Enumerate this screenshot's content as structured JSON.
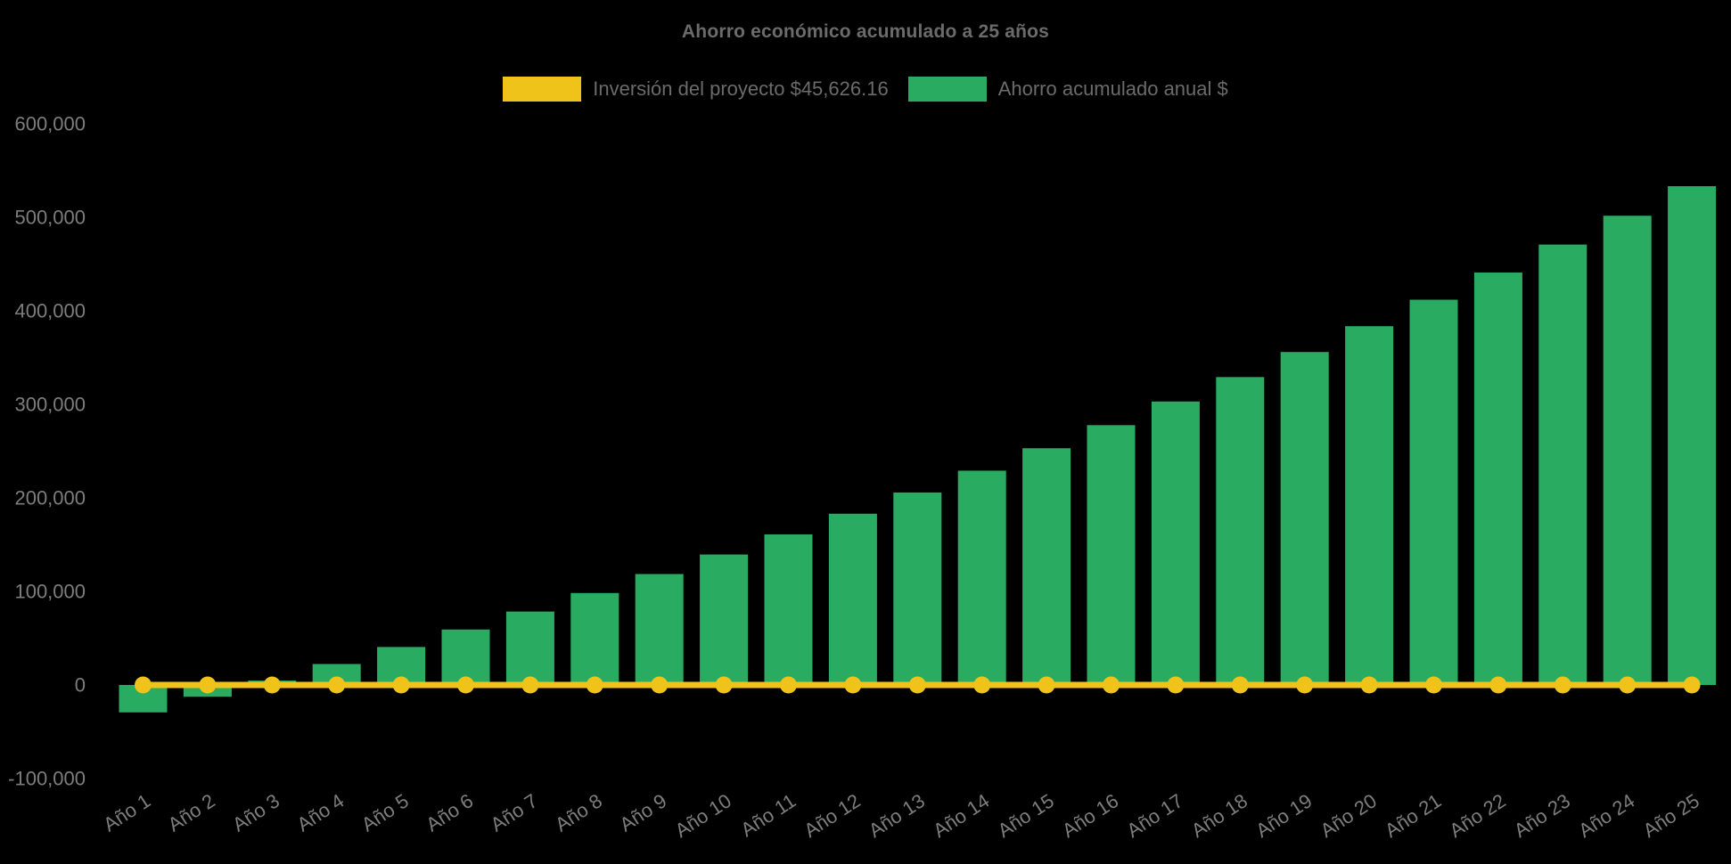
{
  "title": "Ahorro económico acumulado a 25 años",
  "legend": [
    {
      "label": "Inversión del proyecto $45,626.16",
      "color": "#efc319"
    },
    {
      "label": "Ahorro acumulado anual $",
      "color": "#29ac62"
    }
  ],
  "colors": {
    "background": "#000000",
    "bar_green": "#29ac62",
    "line_yellow": "#efc319",
    "title_text": "#6b6b6b",
    "legend_text": "#6b6b6b",
    "axis_text": "#7d7d7d"
  },
  "chart_data": {
    "type": "bar",
    "title": "Ahorro económico acumulado a 25 años",
    "xlabel": "",
    "ylabel": "",
    "ylim": [
      -100000,
      600000
    ],
    "ytick_step": 100000,
    "yticks": [
      600000,
      500000,
      400000,
      300000,
      200000,
      100000,
      0,
      -100000
    ],
    "grid": false,
    "legend_position": "top",
    "categories": [
      "Año 1",
      "Año 2",
      "Año 3",
      "Año 4",
      "Año 5",
      "Año 6",
      "Año 7",
      "Año 8",
      "Año 9",
      "Año 10",
      "Año 11",
      "Año 12",
      "Año 13",
      "Año 14",
      "Año 15",
      "Año 16",
      "Año 17",
      "Año 18",
      "Año 19",
      "Año 20",
      "Año 21",
      "Año 22",
      "Año 23",
      "Año 24",
      "Año 25"
    ],
    "series": [
      {
        "name": "Ahorro acumulado anual $",
        "type": "bar",
        "color": "#29ac62",
        "values": [
          -29300,
          -12600,
          4700,
          22400,
          40600,
          59300,
          78500,
          98300,
          118600,
          139500,
          161000,
          183100,
          205800,
          229100,
          253100,
          277800,
          303100,
          329200,
          356000,
          383600,
          411900,
          441000,
          470900,
          501700,
          533300
        ]
      },
      {
        "name": "Inversión del proyecto $45,626.16",
        "type": "line",
        "color": "#efc319",
        "marker": "circle",
        "investment_amount": 45626.16,
        "values": [
          0,
          0,
          0,
          0,
          0,
          0,
          0,
          0,
          0,
          0,
          0,
          0,
          0,
          0,
          0,
          0,
          0,
          0,
          0,
          0,
          0,
          0,
          0,
          0,
          0
        ]
      }
    ]
  }
}
